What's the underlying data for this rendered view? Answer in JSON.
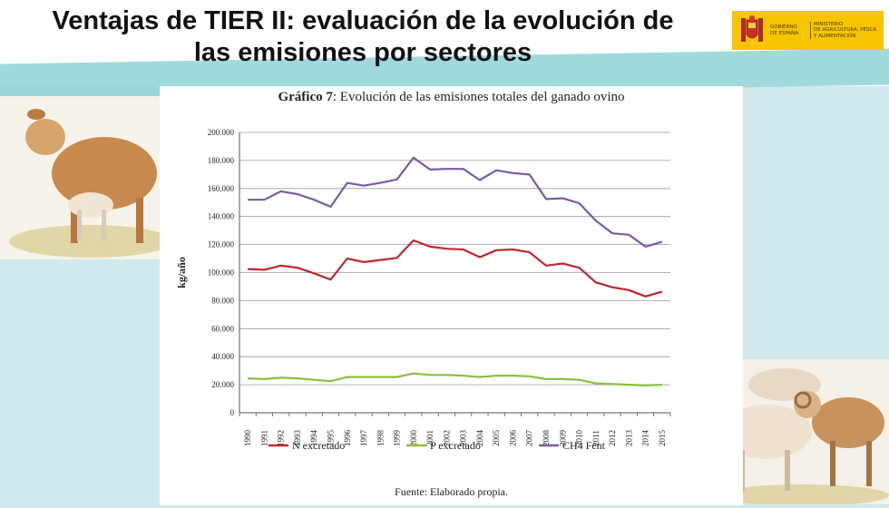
{
  "slide": {
    "title_line1": "Ventajas de TIER II: evaluación de la evolución de",
    "title_line2": "las emisiones por sectores"
  },
  "logo": {
    "line_a1": "GOBIERNO",
    "line_a2": "DE ESPAÑA",
    "line_b1": "MINISTERIO",
    "line_b2": "DE AGRICULTURA, PESCA",
    "line_b3": "Y ALIMENTACIÓN",
    "color": "#f7c500"
  },
  "chart_title": {
    "bold_part": "Gráfico 7",
    "rest": ": Evolución de las emisiones totales del ganado ovino"
  },
  "source_note": "Fuente: Elaborado propia.",
  "chart_data": {
    "type": "line",
    "ylabel": "kg/año",
    "ylim": [
      0,
      200000
    ],
    "yticks": [
      0,
      20000,
      40000,
      60000,
      80000,
      100000,
      120000,
      140000,
      160000,
      180000,
      200000
    ],
    "ytick_labels": [
      "0",
      "20.000",
      "40.000",
      "60.000",
      "80.000",
      "100.000",
      "120.000",
      "140.000",
      "160.000",
      "180.000",
      "200.000"
    ],
    "x": [
      "1990",
      "1991",
      "1992",
      "1993",
      "1994",
      "1995",
      "1996",
      "1997",
      "1998",
      "1999",
      "2000",
      "2001",
      "2002",
      "2003",
      "2004",
      "2005",
      "2006",
      "2007",
      "2008",
      "2009",
      "2010",
      "2011",
      "2012",
      "2013",
      "2014",
      "2015"
    ],
    "grid": "horizontal",
    "legend_position": "bottom",
    "series": [
      {
        "name": "N excretado",
        "color": "#c0272d",
        "values": [
          102500,
          102000,
          105000,
          103500,
          99500,
          95000,
          110000,
          107500,
          109000,
          110500,
          123000,
          118500,
          117000,
          116500,
          111000,
          116000,
          116500,
          114500,
          105000,
          106500,
          103500,
          93000,
          89500,
          87500,
          83000,
          86500
        ]
      },
      {
        "name": "P excretado",
        "color": "#8cbf3f",
        "values": [
          24500,
          24000,
          25000,
          24500,
          23500,
          22500,
          25500,
          25500,
          25500,
          25500,
          28000,
          27000,
          27000,
          26500,
          25500,
          26500,
          26500,
          26000,
          24000,
          24000,
          23500,
          21000,
          20500,
          20000,
          19500,
          20000
        ]
      },
      {
        "name": "CH4 Fent",
        "color": "#7a5ba3",
        "values": [
          152000,
          152000,
          158000,
          156000,
          152000,
          147000,
          164000,
          162000,
          164000,
          166500,
          182000,
          173500,
          174000,
          174000,
          166000,
          173000,
          171000,
          170000,
          152500,
          153000,
          149500,
          137000,
          128000,
          127000,
          118500,
          122000
        ]
      }
    ]
  }
}
